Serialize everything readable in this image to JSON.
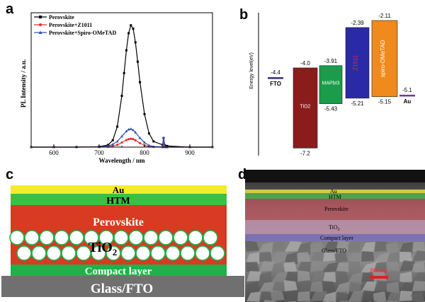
{
  "panels": {
    "a": "a",
    "b": "b",
    "c": "c",
    "d": "d"
  },
  "chart_data": [
    {
      "type": "line",
      "panel": "a",
      "xlabel": "Wavelength / nm",
      "ylabel": "PL Intensity / a.u.",
      "xlim": [
        550,
        950
      ],
      "xticks": [
        "600",
        "700",
        "800",
        "900"
      ],
      "legend_position": "top-left",
      "series": [
        {
          "name": "Perovskite",
          "color": "#000000",
          "marker": "square",
          "x": [
            550,
            600,
            650,
            700,
            720,
            730,
            740,
            750,
            755,
            760,
            765,
            770,
            775,
            780,
            785,
            790,
            800,
            810,
            820,
            840,
            842,
            845,
            850,
            900,
            950
          ],
          "y": [
            0,
            0,
            0,
            0.4,
            2,
            6,
            18,
            45,
            65,
            85,
            100,
            107,
            104,
            92,
            75,
            57,
            29,
            12,
            5,
            2,
            8,
            1.5,
            1,
            0,
            0
          ]
        },
        {
          "name": "Perovskite+Z1011",
          "color": "#e03030",
          "marker": "circle",
          "x": [
            550,
            600,
            650,
            700,
            720,
            730,
            740,
            750,
            760,
            765,
            770,
            775,
            780,
            790,
            800,
            810,
            820,
            840,
            842,
            845,
            850,
            900,
            950
          ],
          "y": [
            0,
            0,
            0,
            0.1,
            0.4,
            1,
            2,
            4,
            6.2,
            7,
            7.3,
            7,
            6,
            3.5,
            1.5,
            0.6,
            0.2,
            0,
            3,
            0,
            0,
            0,
            0
          ]
        },
        {
          "name": "Perovskite+Spiro-OMeTAD",
          "color": "#3050b0",
          "marker": "triangle",
          "x": [
            550,
            600,
            650,
            700,
            720,
            730,
            740,
            750,
            760,
            765,
            770,
            775,
            780,
            790,
            800,
            810,
            820,
            840,
            842,
            845,
            850,
            900,
            950
          ],
          "y": [
            0,
            0,
            0,
            0.2,
            1,
            2.5,
            5,
            9.5,
            14,
            15.5,
            16,
            15,
            13,
            8,
            4,
            1.5,
            0.5,
            0.2,
            8,
            0.2,
            0,
            0,
            0
          ]
        }
      ]
    },
    {
      "type": "bar",
      "panel": "b",
      "ylabel": "Energy level(eV)",
      "ylim": [
        -7.5,
        -1.8
      ],
      "bars": [
        {
          "name": "FTO",
          "top": -4.4,
          "bottom": null,
          "color": "#3a2a7a",
          "top_label": "-4.4",
          "bottom_label": "",
          "text_color": "#000000"
        },
        {
          "name": "TiO2",
          "top": -4.0,
          "bottom": -7.2,
          "color": "#8b1c1c",
          "top_label": "-4.0",
          "bottom_label": "-7.2",
          "text_color": "#ffffff"
        },
        {
          "name": "MAPbI3",
          "top": -3.91,
          "bottom": -5.43,
          "color": "#1a9c4a",
          "top_label": "-3.91",
          "bottom_label": "-5.43",
          "text_color": "#ffffff"
        },
        {
          "name": "Z1011",
          "top": -2.39,
          "bottom": -5.21,
          "color": "#2a2aa8",
          "top_label": "-2.39",
          "bottom_label": "-5.21",
          "text_color": "#ff2020"
        },
        {
          "name": "spiro-OMeTAD",
          "top": -2.11,
          "bottom": -5.15,
          "color": "#f08a1c",
          "top_label": "-2.11",
          "bottom_label": "-5.15",
          "text_color": "#ffffff"
        },
        {
          "name": "Au",
          "top": -5.1,
          "bottom": null,
          "color": "#6a3aa0",
          "top_label": "-5.1",
          "bottom_label": "",
          "text_color": "#000000"
        }
      ]
    }
  ],
  "schematic": {
    "layers": [
      "Au",
      "HTM",
      "Perovskite",
      "TiO",
      "Compact layer",
      "Glass/FTO"
    ],
    "tio_subscript": "2",
    "colors": {
      "au": "#f3ec2a",
      "htm": "#3cbf44",
      "perovskite": "#d83a22",
      "compact": "#1db34a",
      "glass": "#707070"
    }
  },
  "sem": {
    "labels": [
      "Au",
      "HTM",
      "Perovskite",
      "TiO",
      "Compact layer",
      "Glass/FTO"
    ],
    "tio_subscript": "2",
    "scale_bar": "200 nm"
  }
}
